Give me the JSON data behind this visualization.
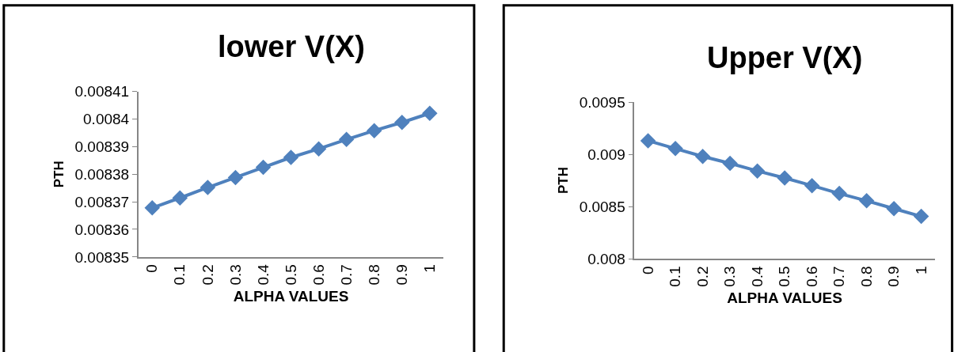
{
  "chart_data": [
    {
      "type": "line",
      "title": "lower V(X)",
      "xlabel": "ALPHA VALUES",
      "ylabel": "PTH",
      "categories": [
        "0",
        "0.1",
        "0.2",
        "0.3",
        "0.4",
        "0.5",
        "0.6",
        "0.7",
        "0.8",
        "0.9",
        "1"
      ],
      "series": [
        {
          "color": "#4f81bd",
          "values": [
            0.0083678,
            0.0083714,
            0.0083752,
            0.0083788,
            0.0083825,
            0.0083861,
            0.0083892,
            0.0083926,
            0.0083958,
            0.0083988,
            0.0084021
          ]
        }
      ],
      "ylim": [
        0.00835,
        0.00841
      ],
      "yticks": [
        0.00835,
        0.00836,
        0.00837,
        0.00838,
        0.00839,
        0.0084,
        0.00841
      ],
      "marker": "diamond",
      "line_style": "solid"
    },
    {
      "type": "line",
      "title": "Upper V(X)",
      "xlabel": "ALPHA VALUES",
      "ylabel": "PTH",
      "categories": [
        "0",
        "0.1",
        "0.2",
        "0.3",
        "0.4",
        "0.5",
        "0.6",
        "0.7",
        "0.8",
        "0.9",
        "1"
      ],
      "series": [
        {
          "color": "#4f81bd",
          "values": [
            0.00913,
            0.009055,
            0.00898,
            0.008913,
            0.00884,
            0.008773,
            0.0087,
            0.008625,
            0.008555,
            0.00848,
            0.008405
          ]
        }
      ],
      "ylim": [
        0.008,
        0.0095
      ],
      "yticks": [
        0.008,
        0.0085,
        0.009,
        0.0095
      ],
      "marker": "diamond",
      "line_style": "solid"
    }
  ]
}
